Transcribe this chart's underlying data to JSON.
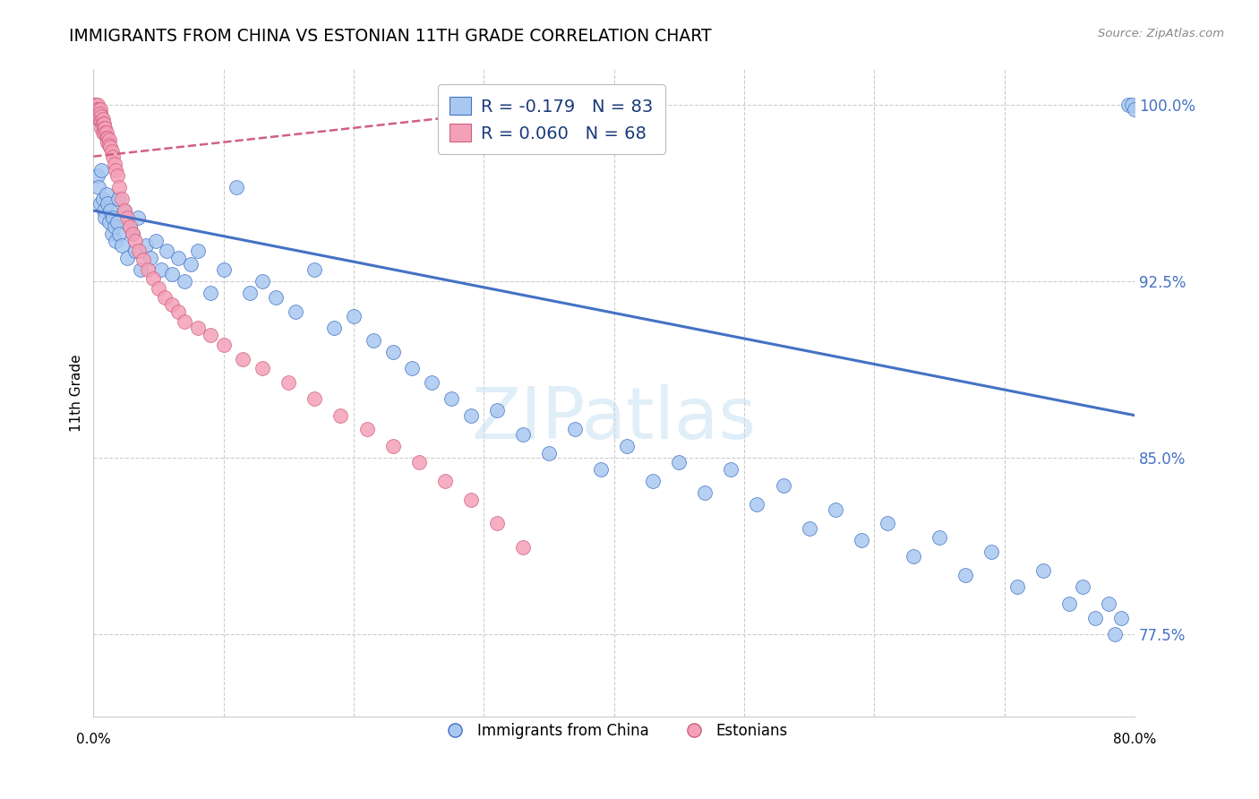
{
  "title": "IMMIGRANTS FROM CHINA VS ESTONIAN 11TH GRADE CORRELATION CHART",
  "source": "Source: ZipAtlas.com",
  "ylabel": "11th Grade",
  "xlim": [
    0.0,
    0.8
  ],
  "ylim": [
    0.74,
    1.015
  ],
  "blue_color": "#A8C8F0",
  "pink_color": "#F4A0B8",
  "trendline_blue": "#4472C4",
  "trendline_pink": "#D06080",
  "legend_text_color": "#1A3A7A",
  "watermark": "ZIPatlas",
  "blue_r": "R = -0.179",
  "blue_n": "N = 83",
  "pink_r": "R = 0.060",
  "pink_n": "N = 68",
  "ytick_vals": [
    1.0,
    0.925,
    0.85,
    0.775
  ],
  "ytick_labs": [
    "100.0%",
    "92.5%",
    "85.0%",
    "77.5%"
  ],
  "blue_scatter_x": [
    0.003,
    0.004,
    0.005,
    0.006,
    0.007,
    0.008,
    0.009,
    0.01,
    0.011,
    0.012,
    0.013,
    0.014,
    0.015,
    0.016,
    0.017,
    0.018,
    0.019,
    0.02,
    0.022,
    0.024,
    0.026,
    0.028,
    0.03,
    0.032,
    0.034,
    0.036,
    0.04,
    0.044,
    0.048,
    0.052,
    0.056,
    0.06,
    0.065,
    0.07,
    0.075,
    0.08,
    0.09,
    0.1,
    0.11,
    0.12,
    0.13,
    0.14,
    0.155,
    0.17,
    0.185,
    0.2,
    0.215,
    0.23,
    0.245,
    0.26,
    0.275,
    0.29,
    0.31,
    0.33,
    0.35,
    0.37,
    0.39,
    0.41,
    0.43,
    0.45,
    0.47,
    0.49,
    0.51,
    0.53,
    0.55,
    0.57,
    0.59,
    0.61,
    0.63,
    0.65,
    0.67,
    0.69,
    0.71,
    0.73,
    0.75,
    0.76,
    0.77,
    0.78,
    0.785,
    0.79,
    0.795,
    0.798,
    0.8
  ],
  "blue_scatter_y": [
    0.97,
    0.965,
    0.958,
    0.972,
    0.96,
    0.955,
    0.952,
    0.962,
    0.958,
    0.95,
    0.955,
    0.945,
    0.952,
    0.948,
    0.942,
    0.95,
    0.96,
    0.945,
    0.94,
    0.955,
    0.935,
    0.948,
    0.945,
    0.938,
    0.952,
    0.93,
    0.94,
    0.935,
    0.942,
    0.93,
    0.938,
    0.928,
    0.935,
    0.925,
    0.932,
    0.938,
    0.92,
    0.93,
    0.965,
    0.92,
    0.925,
    0.918,
    0.912,
    0.93,
    0.905,
    0.91,
    0.9,
    0.895,
    0.888,
    0.882,
    0.875,
    0.868,
    0.87,
    0.86,
    0.852,
    0.862,
    0.845,
    0.855,
    0.84,
    0.848,
    0.835,
    0.845,
    0.83,
    0.838,
    0.82,
    0.828,
    0.815,
    0.822,
    0.808,
    0.816,
    0.8,
    0.81,
    0.795,
    0.802,
    0.788,
    0.795,
    0.782,
    0.788,
    0.775,
    0.782,
    1.0,
    1.0,
    0.998
  ],
  "pink_scatter_x": [
    0.001,
    0.001,
    0.002,
    0.002,
    0.002,
    0.003,
    0.003,
    0.003,
    0.003,
    0.004,
    0.004,
    0.004,
    0.005,
    0.005,
    0.005,
    0.006,
    0.006,
    0.006,
    0.007,
    0.007,
    0.007,
    0.008,
    0.008,
    0.009,
    0.009,
    0.01,
    0.01,
    0.011,
    0.011,
    0.012,
    0.012,
    0.013,
    0.014,
    0.015,
    0.016,
    0.017,
    0.018,
    0.02,
    0.022,
    0.024,
    0.026,
    0.028,
    0.03,
    0.032,
    0.035,
    0.038,
    0.042,
    0.046,
    0.05,
    0.055,
    0.06,
    0.065,
    0.07,
    0.08,
    0.09,
    0.1,
    0.115,
    0.13,
    0.15,
    0.17,
    0.19,
    0.21,
    0.23,
    0.25,
    0.27,
    0.29,
    0.31,
    0.33
  ],
  "pink_scatter_y": [
    0.998,
    1.0,
    1.0,
    1.0,
    0.998,
    1.0,
    0.998,
    0.997,
    0.996,
    0.998,
    0.996,
    0.994,
    0.998,
    0.996,
    0.993,
    0.995,
    0.993,
    0.99,
    0.994,
    0.992,
    0.988,
    0.992,
    0.99,
    0.99,
    0.988,
    0.988,
    0.986,
    0.986,
    0.984,
    0.985,
    0.983,
    0.982,
    0.98,
    0.978,
    0.975,
    0.972,
    0.97,
    0.965,
    0.96,
    0.955,
    0.952,
    0.948,
    0.945,
    0.942,
    0.938,
    0.934,
    0.93,
    0.926,
    0.922,
    0.918,
    0.915,
    0.912,
    0.908,
    0.905,
    0.902,
    0.898,
    0.892,
    0.888,
    0.882,
    0.875,
    0.868,
    0.862,
    0.855,
    0.848,
    0.84,
    0.832,
    0.822,
    0.812
  ],
  "blue_trend_x": [
    0.0,
    0.8
  ],
  "blue_trend_y": [
    0.955,
    0.868
  ],
  "pink_trend_x": [
    0.0,
    0.33
  ],
  "pink_trend_y": [
    0.978,
    0.998
  ]
}
